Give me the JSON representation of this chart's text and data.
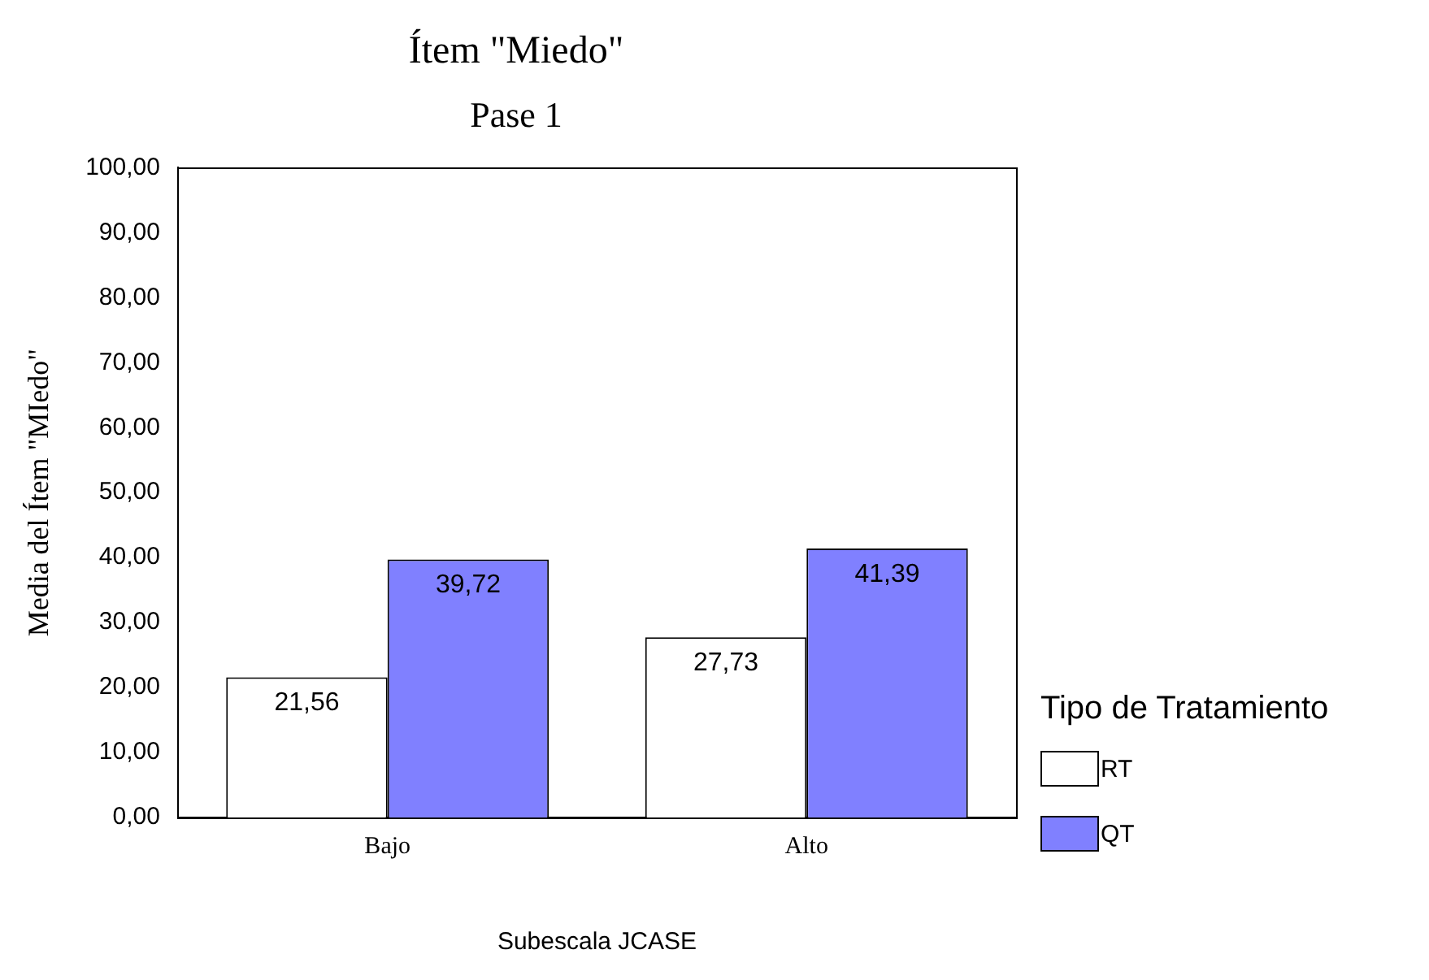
{
  "chart_data": {
    "type": "bar",
    "title": "Ítem \"Miedo\"",
    "subtitle": "Pase 1",
    "xlabel": "Subescala JCASE",
    "ylabel": "Media del Ítem \"MIedo\"",
    "legend_title": "Tipo de Tratamiento",
    "legend": "right",
    "grid": false,
    "categories": [
      "Bajo",
      "Alto"
    ],
    "series": [
      {
        "name": "RT",
        "color": "#ffffff",
        "values": [
          21.56,
          27.73
        ],
        "value_labels": [
          "21,56",
          "27,73"
        ]
      },
      {
        "name": "QT",
        "color": "#8080ff",
        "values": [
          39.72,
          41.39
        ],
        "value_labels": [
          "39,72",
          "41,39"
        ]
      }
    ],
    "ylim": [
      0,
      100
    ],
    "yticks": [
      {
        "value": 0,
        "label": "0,00"
      },
      {
        "value": 10,
        "label": "10,00"
      },
      {
        "value": 20,
        "label": "20,00"
      },
      {
        "value": 30,
        "label": "30,00"
      },
      {
        "value": 40,
        "label": "40,00"
      },
      {
        "value": 50,
        "label": "50,00"
      },
      {
        "value": 60,
        "label": "60,00"
      },
      {
        "value": 70,
        "label": "70,00"
      },
      {
        "value": 80,
        "label": "80,00"
      },
      {
        "value": 90,
        "label": "90,00"
      },
      {
        "value": 100,
        "label": "100,00"
      }
    ]
  }
}
